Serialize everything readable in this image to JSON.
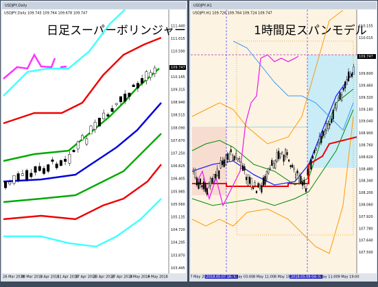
{
  "left_chart": {
    "window_title": "USDJPY,Daily",
    "info": "USDJPY,Daily 109.745 109.764 109.678 109.747",
    "label": "日足スーパーボリンジャー",
    "price_labels": [
      "111.440",
      "111.015",
      "110.590",
      "110.165",
      "109.315",
      "108.940",
      "108.515",
      "108.090",
      "107.670",
      "107.250",
      "106.825",
      "106.405",
      "105.985",
      "105.560",
      "105.135",
      "104.720",
      "104.295",
      "103.870",
      "103.445"
    ],
    "current_price": "109.747",
    "date_labels": [
      "26 Mar 2018",
      "30 Mar 2018",
      "5 Apr 2018",
      "11 Apr 2018",
      "17 Apr 2018",
      "23 Apr 2018",
      "27 Apr 2018",
      "3 May 2018",
      "9 May 2018"
    ]
  },
  "right_chart": {
    "window_title": "USDJPY,H1",
    "info": "USDJPY,H1 109.726 109.764 109.724 109.747",
    "label": "1時間足スパンモデル",
    "price_labels": [
      "110.155",
      "110.015",
      "109.600",
      "109.460",
      "109.320",
      "109.180",
      "109.040",
      "108.900",
      "108.760",
      "108.620",
      "108.480",
      "108.340",
      "108.200",
      "108.060",
      "107.920",
      "107.780",
      "107.640",
      "107.500"
    ],
    "current_price": "109.747",
    "date_labels": [
      "7 May 2018",
      "2018.05.07 16:00",
      "8 May 03:00",
      "8 May 11:00",
      "8 May 19:00",
      "2018.05.09 04:00",
      "9 May 11:00",
      "9 May 19:00"
    ]
  }
}
